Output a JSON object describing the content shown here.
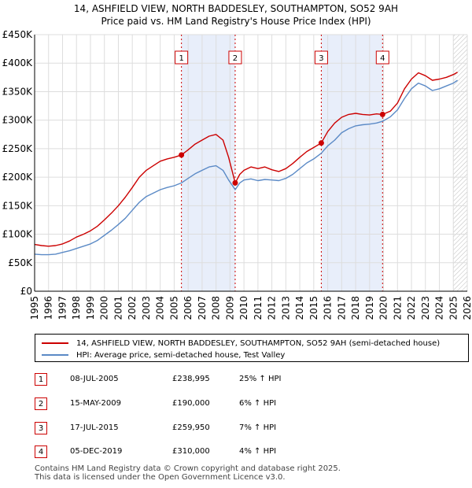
{
  "title_line1": "14, ASHFIELD VIEW, NORTH BADDESLEY, SOUTHAMPTON, SO52 9AH",
  "title_line2": "Price paid vs. HM Land Registry's House Price Index (HPI)",
  "colors": {
    "property": "#cc0000",
    "hpi": "#5b8ac6",
    "band": "#e8eefa",
    "marker": "#cc0000"
  },
  "chart_data": {
    "type": "line",
    "xlim": [
      1995,
      2026
    ],
    "ylim": [
      0,
      450000
    ],
    "y_ticks": [
      0,
      50000,
      100000,
      150000,
      200000,
      250000,
      300000,
      350000,
      400000,
      450000
    ],
    "y_tick_labels": [
      "£0",
      "£50K",
      "£100K",
      "£150K",
      "£200K",
      "£250K",
      "£300K",
      "£350K",
      "£400K",
      "£450K"
    ],
    "x_ticks": [
      1995,
      1996,
      1997,
      1998,
      1999,
      2000,
      2001,
      2002,
      2003,
      2004,
      2005,
      2006,
      2007,
      2008,
      2009,
      2010,
      2011,
      2012,
      2013,
      2014,
      2015,
      2016,
      2017,
      2018,
      2019,
      2020,
      2021,
      2022,
      2023,
      2024,
      2025,
      2026
    ],
    "x_tick_labels": [
      "1995",
      "1996",
      "1997",
      "1998",
      "1999",
      "2000",
      "2001",
      "2002",
      "2003",
      "2004",
      "2005",
      "2006",
      "2007",
      "2008",
      "2009",
      "2010",
      "2011",
      "2012",
      "2013",
      "2014",
      "2015",
      "2016",
      "2017",
      "2018",
      "2019",
      "2020",
      "2021",
      "2022",
      "2023",
      "2024",
      "2025",
      "2026"
    ],
    "shaded_periods": [
      [
        2005.52,
        2009.37
      ],
      [
        2015.54,
        2019.93
      ]
    ],
    "forecast_start": 2025.0,
    "series": [
      {
        "name": "14, ASHFIELD VIEW, NORTH BADDESLEY, SOUTHAMPTON, SO52 9AH (semi-detached house)",
        "color": "#cc0000",
        "x": [
          1995,
          1995.5,
          1996,
          1996.5,
          1997,
          1997.5,
          1998,
          1998.5,
          1999,
          1999.5,
          2000,
          2000.5,
          2001,
          2001.5,
          2002,
          2002.5,
          2003,
          2003.5,
          2004,
          2004.5,
          2005,
          2005.52,
          2006,
          2006.5,
          2007,
          2007.5,
          2008,
          2008.5,
          2008.9,
          2009.37,
          2009.7,
          2010,
          2010.5,
          2011,
          2011.5,
          2012,
          2012.5,
          2013,
          2013.5,
          2014,
          2014.5,
          2015,
          2015.54,
          2016,
          2016.5,
          2017,
          2017.5,
          2018,
          2018.5,
          2019,
          2019.5,
          2019.93,
          2020.5,
          2021,
          2021.5,
          2022,
          2022.5,
          2023,
          2023.5,
          2024,
          2024.5,
          2025,
          2025.3
        ],
        "y": [
          82000,
          80000,
          79000,
          80000,
          83000,
          88000,
          95000,
          100000,
          106000,
          114000,
          125000,
          137000,
          150000,
          165000,
          182000,
          200000,
          212000,
          220000,
          228000,
          232000,
          235000,
          238995,
          248000,
          258000,
          265000,
          272000,
          275000,
          265000,
          235000,
          190000,
          205000,
          212000,
          218000,
          215000,
          218000,
          213000,
          210000,
          215000,
          224000,
          235000,
          245000,
          252000,
          259950,
          280000,
          295000,
          305000,
          310000,
          312000,
          310000,
          309000,
          311000,
          310000,
          316000,
          330000,
          355000,
          372000,
          383000,
          378000,
          370000,
          372000,
          375000,
          380000,
          384000
        ]
      },
      {
        "name": "HPI: Average price, semi-detached house, Test Valley",
        "color": "#5b8ac6",
        "x": [
          1995,
          1995.5,
          1996,
          1996.5,
          1997,
          1997.5,
          1998,
          1998.5,
          1999,
          1999.5,
          2000,
          2000.5,
          2001,
          2001.5,
          2002,
          2002.5,
          2003,
          2003.5,
          2004,
          2004.5,
          2005,
          2005.52,
          2006,
          2006.5,
          2007,
          2007.5,
          2008,
          2008.5,
          2008.9,
          2009.37,
          2009.7,
          2010,
          2010.5,
          2011,
          2011.5,
          2012,
          2012.5,
          2013,
          2013.5,
          2014,
          2014.5,
          2015,
          2015.54,
          2016,
          2016.5,
          2017,
          2017.5,
          2018,
          2018.5,
          2019,
          2019.5,
          2019.93,
          2020.5,
          2021,
          2021.5,
          2022,
          2022.5,
          2023,
          2023.5,
          2024,
          2024.5,
          2025,
          2025.3
        ],
        "y": [
          65000,
          64000,
          64000,
          65000,
          68000,
          71000,
          75000,
          79000,
          83000,
          89000,
          98000,
          107000,
          117000,
          128000,
          142000,
          156000,
          166000,
          172000,
          178000,
          182000,
          185000,
          190000,
          198000,
          206000,
          212000,
          218000,
          220000,
          212000,
          195000,
          178000,
          190000,
          195000,
          197000,
          194000,
          196000,
          195000,
          194000,
          198000,
          205000,
          215000,
          225000,
          232000,
          242000,
          255000,
          265000,
          278000,
          285000,
          290000,
          292000,
          293000,
          295000,
          298000,
          306000,
          318000,
          338000,
          355000,
          365000,
          360000,
          352000,
          355000,
          360000,
          365000,
          370000
        ]
      }
    ],
    "sales": [
      {
        "label": "1",
        "x": 2005.52,
        "y": 238995
      },
      {
        "label": "2",
        "x": 2009.37,
        "y": 190000
      },
      {
        "label": "3",
        "x": 2015.54,
        "y": 259950
      },
      {
        "label": "4",
        "x": 2019.93,
        "y": 310000
      }
    ]
  },
  "legend": {
    "property_label": "14, ASHFIELD VIEW, NORTH BADDESLEY, SOUTHAMPTON, SO52 9AH (semi-detached house)",
    "hpi_label": "HPI: Average price, semi-detached house, Test Valley"
  },
  "transactions": [
    {
      "num": "1",
      "date": "08-JUL-2005",
      "price": "£238,995",
      "pct": "25% ↑ HPI"
    },
    {
      "num": "2",
      "date": "15-MAY-2009",
      "price": "£190,000",
      "pct": "6% ↑ HPI"
    },
    {
      "num": "3",
      "date": "17-JUL-2015",
      "price": "£259,950",
      "pct": "7% ↑ HPI"
    },
    {
      "num": "4",
      "date": "05-DEC-2019",
      "price": "£310,000",
      "pct": "4% ↑ HPI"
    }
  ],
  "footer_line1": "Contains HM Land Registry data © Crown copyright and database right 2025.",
  "footer_line2": "This data is licensed under the Open Government Licence v3.0."
}
